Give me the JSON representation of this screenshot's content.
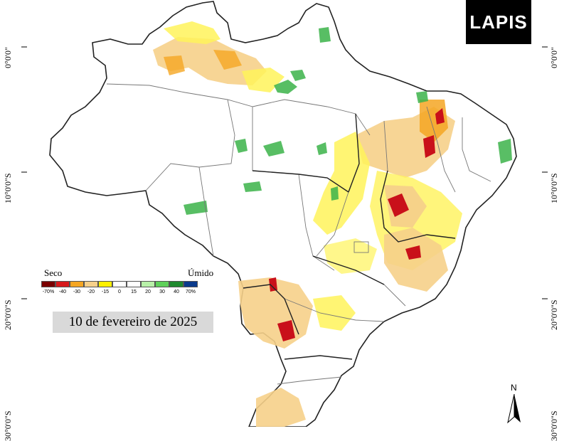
{
  "latitude_labels": [
    "0°0'0\"",
    "10°0'0\"S",
    "20°0'0\"S",
    "30°0'0\"S"
  ],
  "logo_text": "LAPIS",
  "legend": {
    "dry_label": "Seco",
    "wet_label": "Úmido",
    "classes": [
      {
        "label": "-70%",
        "color": "#7a0000"
      },
      {
        "label": "-40",
        "color": "#d7191c"
      },
      {
        "label": "-30",
        "color": "#f5a623"
      },
      {
        "label": "-20",
        "color": "#f6d08a"
      },
      {
        "label": "-15",
        "color": "#fff000"
      },
      {
        "label": "0",
        "color": "#ffffff"
      },
      {
        "label": "15",
        "color": "#ffffff"
      },
      {
        "label": "20",
        "color": "#b8f0a8"
      },
      {
        "label": "30",
        "color": "#5fd05a"
      },
      {
        "label": "40",
        "color": "#1f8a2e"
      },
      {
        "label": "70%",
        "color": "#0a3a8c"
      }
    ]
  },
  "date_text": "10 de fevereiro de 2025",
  "north_label": "N",
  "colors": {
    "dry_orange": "#f2c27a",
    "dry_yellow": "#fff35a",
    "dry_red": "#c9101a",
    "wet_green": "#3cb34a",
    "border": "#222222",
    "state_lines": "#777777"
  }
}
